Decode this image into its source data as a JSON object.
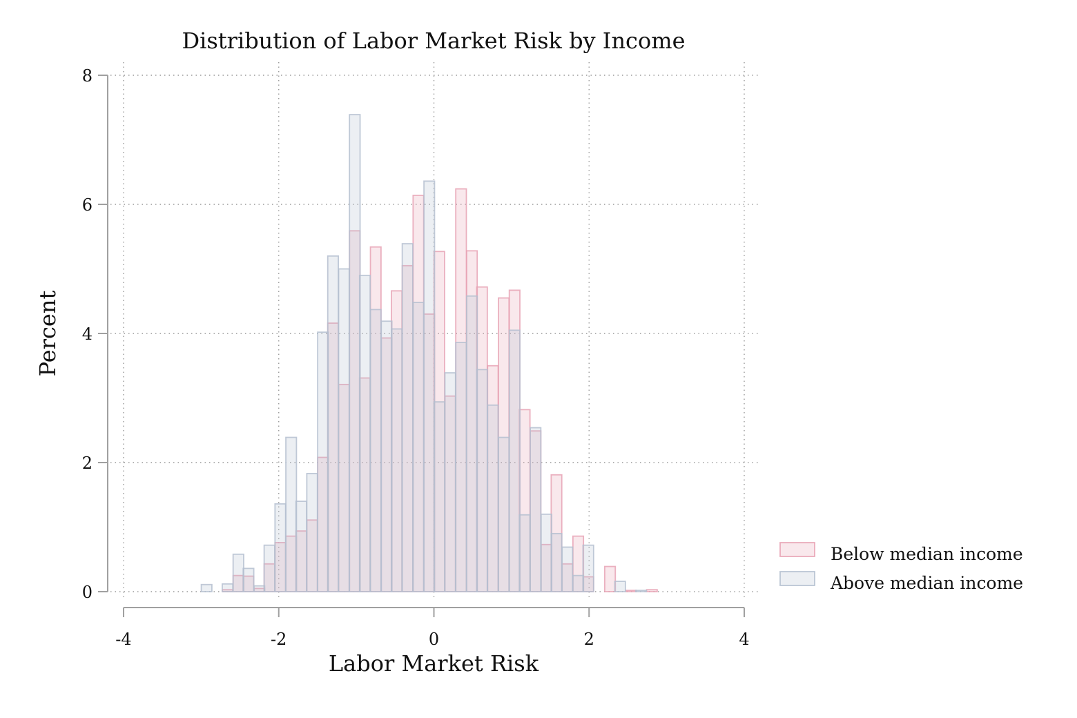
{
  "chart_data": {
    "type": "bar",
    "title": "Distribution of Labor Market Risk by Income",
    "xlabel": "Labor Market Risk",
    "ylabel": "Percent",
    "xlim": [
      -4,
      4
    ],
    "ylim": [
      0,
      8
    ],
    "xticks": [
      "-4",
      "-2",
      "0",
      "2",
      "4"
    ],
    "yticks": [
      "0",
      "2",
      "4",
      "6",
      "8"
    ],
    "grid": true,
    "legend_position": "bottom-right",
    "colors": {
      "below": "#e8a3b5",
      "above": "#b5c0d0"
    },
    "series": [
      {
        "name": "Below median income",
        "bins": [
          [
            -2.66,
            0.03
          ],
          [
            -2.52,
            0.25
          ],
          [
            -2.39,
            0.24
          ],
          [
            -2.25,
            0.05
          ],
          [
            -2.12,
            0.43
          ],
          [
            -1.98,
            0.76
          ],
          [
            -1.84,
            0.86
          ],
          [
            -1.71,
            0.94
          ],
          [
            -1.57,
            1.11
          ],
          [
            -1.43,
            2.08
          ],
          [
            -1.3,
            4.16
          ],
          [
            -1.16,
            3.21
          ],
          [
            -1.02,
            5.59
          ],
          [
            -0.89,
            3.31
          ],
          [
            -0.75,
            5.34
          ],
          [
            -0.61,
            3.93
          ],
          [
            -0.48,
            4.66
          ],
          [
            -0.34,
            5.05
          ],
          [
            -0.2,
            6.14
          ],
          [
            -0.06,
            4.3
          ],
          [
            0.07,
            5.27
          ],
          [
            0.21,
            3.03
          ],
          [
            0.35,
            6.24
          ],
          [
            0.49,
            5.28
          ],
          [
            0.62,
            4.72
          ],
          [
            0.76,
            3.5
          ],
          [
            0.9,
            4.55
          ],
          [
            1.04,
            4.67
          ],
          [
            1.17,
            2.82
          ],
          [
            1.31,
            2.49
          ],
          [
            1.45,
            0.73
          ],
          [
            1.58,
            1.81
          ],
          [
            1.72,
            0.43
          ],
          [
            1.86,
            0.86
          ],
          [
            1.99,
            0.23
          ],
          [
            2.27,
            0.39
          ],
          [
            2.54,
            0.02
          ],
          [
            2.81,
            0.03
          ]
        ]
      },
      {
        "name": "Above median income",
        "bins": [
          [
            -2.93,
            0.11
          ],
          [
            -2.66,
            0.12
          ],
          [
            -2.52,
            0.58
          ],
          [
            -2.39,
            0.36
          ],
          [
            -2.25,
            0.09
          ],
          [
            -2.12,
            0.72
          ],
          [
            -1.98,
            1.36
          ],
          [
            -1.84,
            2.39
          ],
          [
            -1.71,
            1.4
          ],
          [
            -1.57,
            1.83
          ],
          [
            -1.43,
            4.02
          ],
          [
            -1.3,
            5.2
          ],
          [
            -1.16,
            5.0
          ],
          [
            -1.02,
            7.39
          ],
          [
            -0.89,
            4.9
          ],
          [
            -0.75,
            4.37
          ],
          [
            -0.61,
            4.19
          ],
          [
            -0.48,
            4.07
          ],
          [
            -0.34,
            5.39
          ],
          [
            -0.2,
            4.48
          ],
          [
            -0.06,
            6.36
          ],
          [
            0.07,
            2.94
          ],
          [
            0.21,
            3.39
          ],
          [
            0.35,
            3.86
          ],
          [
            0.49,
            4.58
          ],
          [
            0.62,
            3.44
          ],
          [
            0.76,
            2.89
          ],
          [
            0.9,
            2.39
          ],
          [
            1.04,
            4.05
          ],
          [
            1.17,
            1.19
          ],
          [
            1.31,
            2.54
          ],
          [
            1.45,
            1.2
          ],
          [
            1.58,
            0.9
          ],
          [
            1.72,
            0.69
          ],
          [
            1.86,
            0.25
          ],
          [
            1.99,
            0.72
          ],
          [
            2.4,
            0.16
          ],
          [
            2.67,
            0.02
          ]
        ]
      }
    ]
  }
}
